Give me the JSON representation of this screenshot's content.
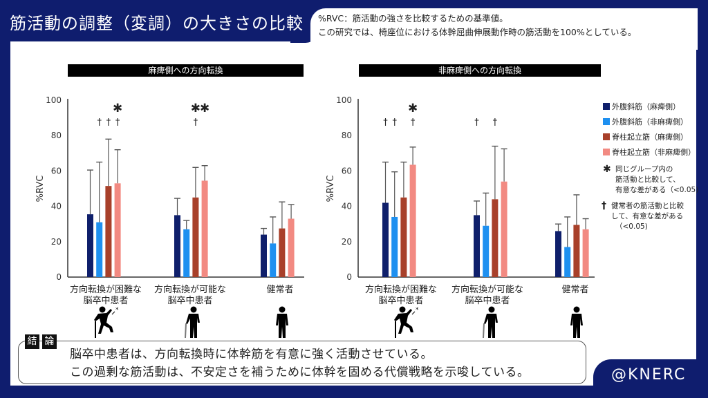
{
  "header": {
    "title": "筋活動の調整（変調）の大きさの比較",
    "note_lines": [
      "%RVC：筋活動の強さを比較するための基準値。",
      "この研究では、椅座位における体幹屈曲伸展動作時の筋活動を100%としている。"
    ]
  },
  "legend": {
    "items": [
      {
        "label": "外腹斜筋（麻痺側）",
        "color": "#0f1f6b"
      },
      {
        "label": "外腹斜筋（非麻痺側）",
        "color": "#1e90f0"
      },
      {
        "label": "脊柱起立筋（麻痺側）",
        "color": "#a8402a"
      },
      {
        "label": "脊柱起立筋（非麻痺側）",
        "color": "#f28a82"
      }
    ],
    "asterisk_symbol": "✱",
    "asterisk_note": [
      "同じグループ内の",
      "筋活動と比較して、",
      "有意な差がある（<0.05)"
    ],
    "dagger_symbol": "†",
    "dagger_note": [
      "健常者の筋活動と比較",
      "して、有意な差がある",
      "（<0.05)"
    ]
  },
  "chart_data": [
    {
      "type": "bar",
      "title": "麻痺側への方向転換",
      "ylabel": "%RVC",
      "xlabel": "",
      "ylim": [
        0,
        100
      ],
      "yticks": [
        0,
        20,
        40,
        60,
        80,
        100
      ],
      "grid": false,
      "categories": [
        "方向転換が困難な\n脳卒中患者",
        "方向転換が可能な\n脳卒中患者",
        "健常者"
      ],
      "series": [
        {
          "name": "外腹斜筋（麻痺側）",
          "values": [
            35.5,
            35,
            24
          ],
          "error_upper": [
            60.5,
            44.5,
            27.5
          ]
        },
        {
          "name": "外腹斜筋（非麻痺側）",
          "values": [
            31,
            27,
            19
          ],
          "error_upper": [
            65,
            32,
            34
          ]
        },
        {
          "name": "脊柱起立筋（麻痺側）",
          "values": [
            51.5,
            45,
            27.5
          ],
          "error_upper": [
            78,
            62,
            42.5
          ]
        },
        {
          "name": "脊柱起立筋（非麻痺側）",
          "values": [
            53,
            54.5,
            33
          ],
          "error_upper": [
            72,
            63,
            41
          ]
        }
      ],
      "annotations": [
        {
          "category": 0,
          "series": 1,
          "text": "†"
        },
        {
          "category": 0,
          "series": 2,
          "text": "†"
        },
        {
          "category": 0,
          "series": 3,
          "text": "†"
        },
        {
          "category": 0,
          "series": 3,
          "text": "✱",
          "row": "top"
        },
        {
          "category": 1,
          "series": 2,
          "text": "†"
        },
        {
          "category": 1,
          "series": 2,
          "text": "✱",
          "row": "top"
        },
        {
          "category": 1,
          "series": 3,
          "text": "✱",
          "row": "top"
        }
      ]
    },
    {
      "type": "bar",
      "title": "非麻痺側への方向転換",
      "ylabel": "%RVC",
      "xlabel": "",
      "ylim": [
        0,
        100
      ],
      "yticks": [
        0,
        20,
        40,
        60,
        80,
        100
      ],
      "grid": false,
      "categories": [
        "方向転換が困難な\n脳卒中患者",
        "方向転換が可能な\n脳卒中患者",
        "健常者"
      ],
      "series": [
        {
          "name": "外腹斜筋（麻痺側）",
          "values": [
            42,
            35,
            26
          ],
          "error_upper": [
            65,
            43,
            30
          ]
        },
        {
          "name": "外腹斜筋（非麻痺側）",
          "values": [
            34,
            29,
            17
          ],
          "error_upper": [
            59.5,
            47.5,
            34
          ]
        },
        {
          "name": "脊柱起立筋（麻痺側）",
          "values": [
            45,
            44,
            29.5
          ],
          "error_upper": [
            65,
            74,
            46.5
          ]
        },
        {
          "name": "脊柱起立筋（非麻痺側）",
          "values": [
            63.5,
            54,
            27
          ],
          "error_upper": [
            73.5,
            72.5,
            33
          ]
        }
      ],
      "annotations": [
        {
          "category": 0,
          "series": 0,
          "text": "†"
        },
        {
          "category": 0,
          "series": 1,
          "text": "†"
        },
        {
          "category": 0,
          "series": 3,
          "text": "†"
        },
        {
          "category": 0,
          "series": 3,
          "text": "✱",
          "row": "top"
        },
        {
          "category": 1,
          "series": 0,
          "text": "†"
        },
        {
          "category": 1,
          "series": 2,
          "text": "†"
        }
      ]
    }
  ],
  "figures": [
    "stumbling-person",
    "person-with-cane",
    "standing-person"
  ],
  "conclusion": {
    "tag_chars": [
      "結",
      "論"
    ],
    "lines": [
      "脳卒中患者は、方向転換時に体幹筋を有意に強く活動させている。",
      "この過剰な筋活動は、不安定さを補うために体幹を固める代償戦略を示唆している。"
    ]
  },
  "brand": "@KNERC"
}
